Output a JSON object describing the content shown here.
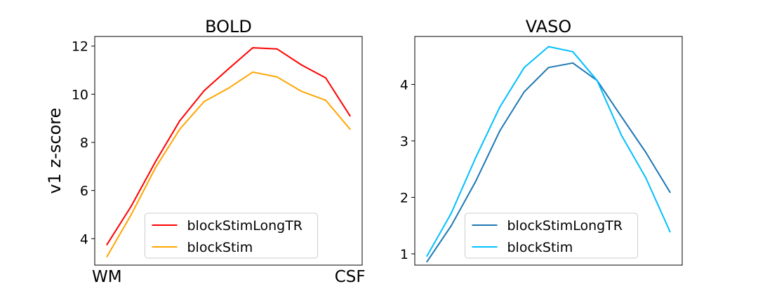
{
  "chart_data": [
    {
      "type": "line",
      "title": "BOLD",
      "xlabel": "",
      "ylabel": "v1 z-score",
      "x": [
        1,
        2,
        3,
        4,
        5,
        6,
        7,
        8,
        9,
        10,
        11
      ],
      "xlim": [
        0.5,
        11.5
      ],
      "x_tick_labels": [
        {
          "x": 1,
          "label": "WM"
        },
        {
          "x": 11,
          "label": "CSF"
        }
      ],
      "ylim": [
        2.9,
        12.4
      ],
      "yticks": [
        4,
        6,
        8,
        10,
        12
      ],
      "grid": false,
      "legend_position": "lower-center",
      "series": [
        {
          "name": "blockStimLongTR",
          "color": "#ff0000",
          "values": [
            3.75,
            5.35,
            7.2,
            8.9,
            10.15,
            11.05,
            11.93,
            11.88,
            11.22,
            10.68,
            9.1
          ]
        },
        {
          "name": "blockStim",
          "color": "#ffa500",
          "values": [
            3.25,
            5.0,
            6.95,
            8.55,
            9.7,
            10.25,
            10.92,
            10.72,
            10.12,
            9.75,
            8.55
          ]
        }
      ]
    },
    {
      "type": "line",
      "title": "VASO",
      "xlabel": "",
      "ylabel": "",
      "x": [
        1,
        2,
        3,
        4,
        5,
        6,
        7,
        8,
        9,
        10,
        11
      ],
      "xlim": [
        0.5,
        11.5
      ],
      "x_tick_labels": [],
      "ylim": [
        0.8,
        4.85
      ],
      "yticks": [
        1,
        2,
        3,
        4
      ],
      "grid": false,
      "legend_position": "lower-center",
      "series": [
        {
          "name": "blockStimLongTR",
          "color": "#1f77b4",
          "values": [
            0.86,
            1.5,
            2.28,
            3.18,
            3.87,
            4.3,
            4.38,
            4.07,
            3.43,
            2.8,
            2.09
          ]
        },
        {
          "name": "blockStim",
          "color": "#00bfff",
          "values": [
            0.96,
            1.72,
            2.7,
            3.6,
            4.3,
            4.67,
            4.58,
            4.07,
            3.1,
            2.35,
            1.39
          ]
        }
      ]
    }
  ]
}
